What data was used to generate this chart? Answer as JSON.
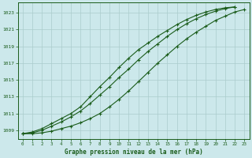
{
  "xlabel": "Graphe pression niveau de la mer (hPa)",
  "background_color": "#cce8eb",
  "grid_color": "#aacccc",
  "line_color": "#1a5c1a",
  "ylim": [
    1008,
    1024.2
  ],
  "xlim": [
    -0.5,
    23.5
  ],
  "yticks": [
    1009,
    1011,
    1013,
    1015,
    1017,
    1019,
    1021,
    1023
  ],
  "xticks": [
    0,
    1,
    2,
    3,
    4,
    5,
    6,
    7,
    8,
    9,
    10,
    11,
    12,
    13,
    14,
    15,
    16,
    17,
    18,
    19,
    20,
    21,
    22,
    23
  ],
  "series_upper_x": [
    0,
    1,
    2,
    3,
    4,
    5,
    6,
    7,
    8,
    9,
    10,
    11,
    12,
    13,
    14,
    15,
    16,
    17,
    18,
    19,
    20,
    21,
    22
  ],
  "series_upper_y": [
    1008.6,
    1008.8,
    1009.2,
    1009.8,
    1010.4,
    1011.0,
    1011.8,
    1013.0,
    1014.2,
    1015.3,
    1016.5,
    1017.6,
    1018.6,
    1019.4,
    1020.2,
    1020.9,
    1021.6,
    1022.2,
    1022.7,
    1023.1,
    1023.4,
    1023.6,
    1023.7
  ],
  "series_mid_x": [
    0,
    1,
    2,
    3,
    4,
    5,
    6,
    7,
    8,
    9,
    10,
    11,
    12,
    13,
    14,
    15,
    16,
    17,
    18,
    19,
    20,
    21,
    22
  ],
  "series_mid_y": [
    1008.6,
    1008.7,
    1009.0,
    1009.5,
    1010.0,
    1010.6,
    1011.3,
    1012.2,
    1013.2,
    1014.2,
    1015.3,
    1016.3,
    1017.4,
    1018.4,
    1019.3,
    1020.2,
    1021.0,
    1021.7,
    1022.3,
    1022.8,
    1023.2,
    1023.5,
    1023.7
  ],
  "series_lower_x": [
    0,
    1,
    2,
    3,
    4,
    5,
    6,
    7,
    8,
    9,
    10,
    11,
    12,
    13,
    14,
    15,
    16,
    17,
    18,
    19,
    20,
    21,
    22,
    23
  ],
  "series_lower_y": [
    1008.6,
    1008.6,
    1008.7,
    1008.9,
    1009.2,
    1009.5,
    1009.9,
    1010.4,
    1011.0,
    1011.8,
    1012.7,
    1013.7,
    1014.8,
    1015.9,
    1017.0,
    1018.0,
    1019.0,
    1019.9,
    1020.7,
    1021.4,
    1022.1,
    1022.6,
    1023.1,
    1023.4
  ]
}
